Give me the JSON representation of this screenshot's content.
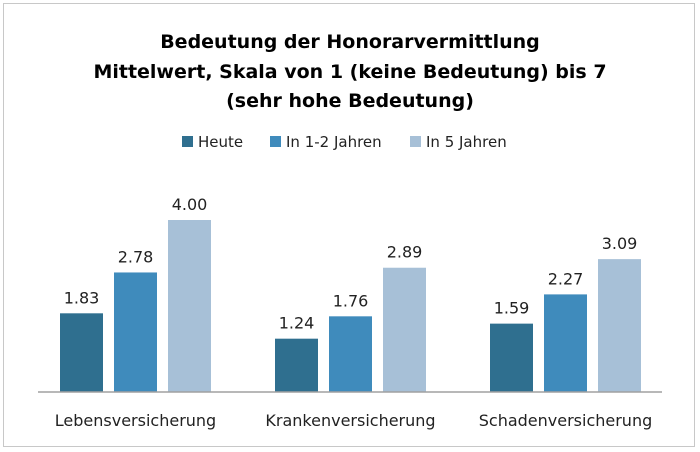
{
  "chart_data": {
    "type": "bar",
    "title": [
      "Bedeutung der Honorarvermittlung",
      "Mittelwert, Skala von 1 (keine Bedeutung) bis 7",
      "(sehr hohe Bedeutung)"
    ],
    "categories": [
      "Lebensversicherung",
      "Krankenversicherung",
      "Schadenversicherung"
    ],
    "series": [
      {
        "name": "Heute",
        "values": [
          1.83,
          1.24,
          1.59
        ],
        "labels": [
          "1.83",
          "1.24",
          "1.59"
        ],
        "color": "#2f6f8f"
      },
      {
        "name": "In 1-2 Jahren",
        "values": [
          2.78,
          1.76,
          2.27
        ],
        "labels": [
          "2.78",
          "1.76",
          "2.27"
        ],
        "color": "#3f8bbc"
      },
      {
        "name": "In 5 Jahren",
        "values": [
          4.0,
          2.89,
          3.09
        ],
        "labels": [
          "4.00",
          "2.89",
          "3.09"
        ],
        "color": "#a7c0d7"
      }
    ],
    "xlabel": "",
    "ylabel": "",
    "ylim": [
      0,
      4.2
    ],
    "grid": false,
    "legend": "top-center"
  }
}
